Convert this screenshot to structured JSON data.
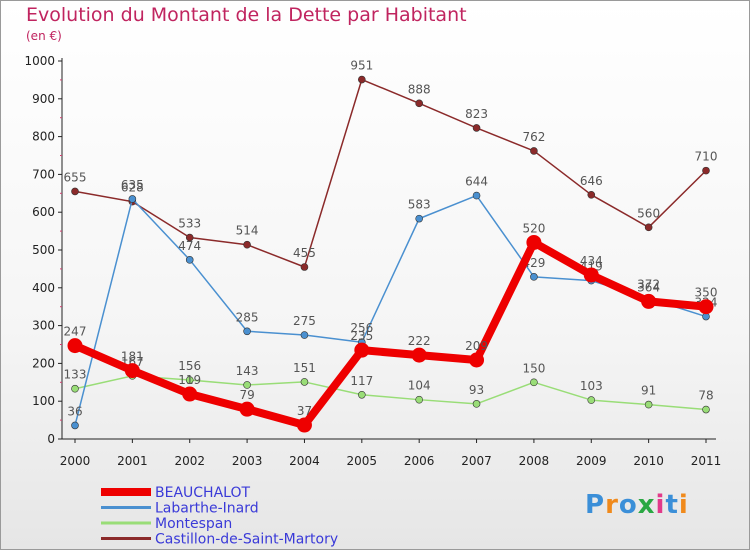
{
  "title": "Evolution du Montant de la Dette par Habitant",
  "subtitle": "(en €)",
  "logo": "Proxiti",
  "colors": {
    "title": "#c0245f",
    "legend_text": "#3a3ad8",
    "axis": "#222222"
  },
  "chart_data": {
    "type": "line",
    "title": "Evolution du Montant de la Dette par Habitant",
    "subtitle": "(en €)",
    "xlabel": "",
    "ylabel": "",
    "x": [
      "2000",
      "2001",
      "2002",
      "2003",
      "2004",
      "2005",
      "2006",
      "2007",
      "2008",
      "2009",
      "2010",
      "2011"
    ],
    "ylim": [
      0,
      1000
    ],
    "yticks": [
      0,
      100,
      200,
      300,
      400,
      500,
      600,
      700,
      800,
      900,
      1000
    ],
    "grid": false,
    "legend_position": "bottom-left",
    "series": [
      {
        "name": "BEAUCHALOT",
        "color": "#ee0000",
        "emphasis": true,
        "values": [
          247,
          181,
          119,
          79,
          37,
          235,
          222,
          209,
          520,
          434,
          364,
          350
        ]
      },
      {
        "name": "Labarthe-Inard",
        "color": "#4a90d0",
        "emphasis": false,
        "values": [
          36,
          635,
          474,
          285,
          275,
          256,
          583,
          644,
          429,
          419,
          372,
          324
        ]
      },
      {
        "name": "Montespan",
        "color": "#99dd77",
        "emphasis": false,
        "values": [
          133,
          167,
          156,
          143,
          151,
          117,
          104,
          93,
          150,
          103,
          91,
          78
        ]
      },
      {
        "name": "Castillon-de-Saint-Martory",
        "color": "#8b2a2a",
        "emphasis": false,
        "values": [
          655,
          628,
          533,
          514,
          455,
          951,
          888,
          823,
          762,
          646,
          560,
          710
        ]
      }
    ]
  }
}
